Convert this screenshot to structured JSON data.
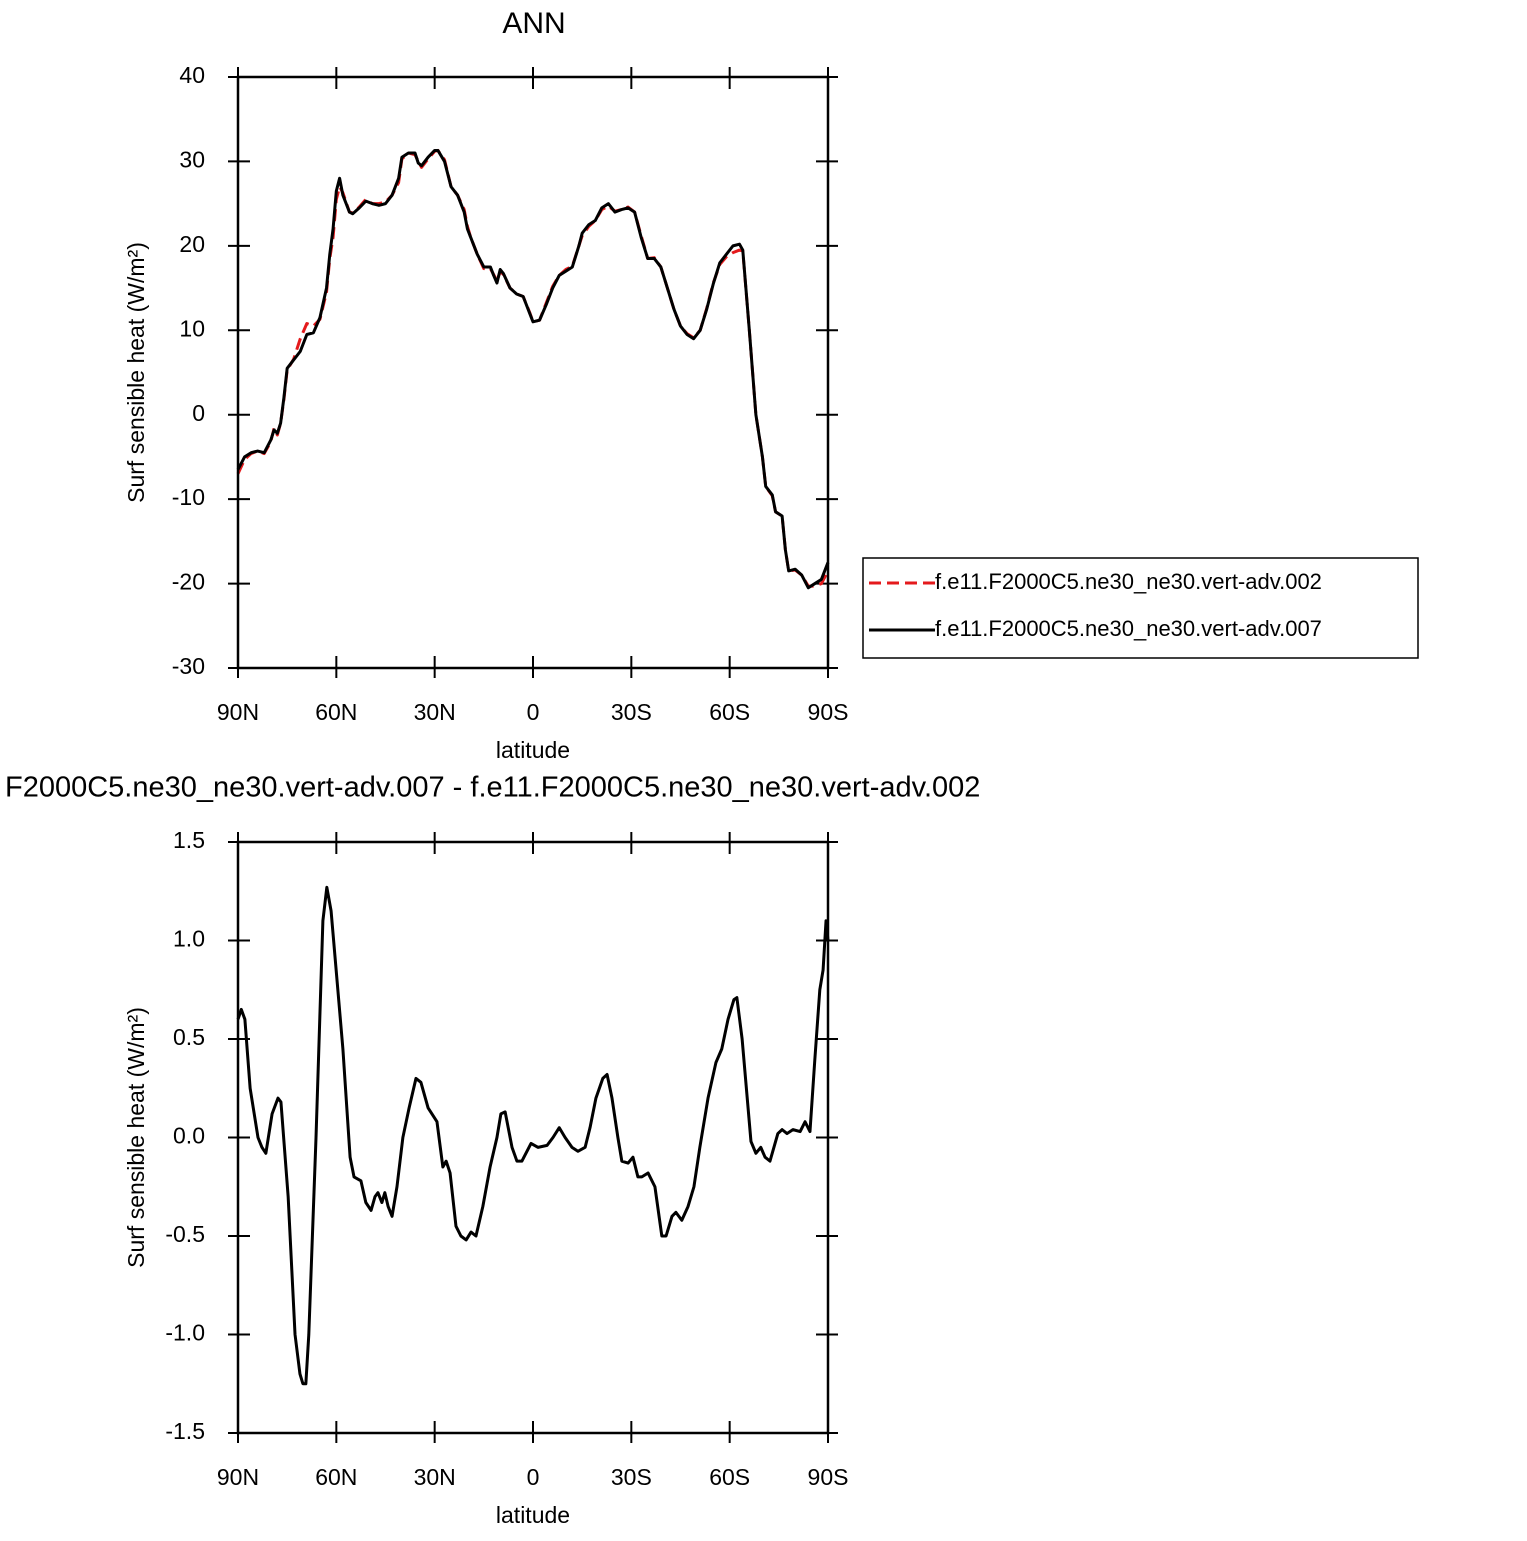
{
  "chart_data": [
    {
      "type": "line",
      "title": "ANN",
      "xlabel": "latitude",
      "ylabel": "Surf sensible heat (W/m²)",
      "xlim": [
        90,
        -90
      ],
      "xticks": [
        {
          "value": 90,
          "label": "90N"
        },
        {
          "value": 60,
          "label": "60N"
        },
        {
          "value": 30,
          "label": "30N"
        },
        0,
        {
          "value": -30,
          "label": "30S"
        },
        {
          "value": -60,
          "label": "60S"
        },
        {
          "value": -90,
          "label": "90S"
        }
      ],
      "ylim": [
        -30,
        40
      ],
      "yticks": [
        -30,
        -20,
        -10,
        0,
        10,
        20,
        30,
        40
      ],
      "legend": "right",
      "x": [
        90,
        88,
        86,
        84,
        82,
        80,
        79,
        78,
        77,
        76,
        75,
        73,
        71,
        69,
        67,
        65,
        63,
        62,
        61,
        60,
        59,
        58,
        56,
        55,
        53,
        51,
        49,
        47,
        45,
        43,
        41,
        40,
        38,
        36,
        35,
        34,
        32,
        30,
        29,
        27,
        25,
        23,
        21,
        20,
        19,
        17,
        15,
        13,
        12,
        11,
        10,
        9,
        7,
        5,
        3,
        1,
        0,
        -2,
        -4,
        -6,
        -8,
        -10,
        -12,
        -14,
        -15,
        -17,
        -19,
        -21,
        -23,
        -25,
        -27,
        -29,
        -31,
        -33,
        -35,
        -37,
        -39,
        -41,
        -43,
        -45,
        -47,
        -49,
        -51,
        -53,
        -55,
        -57,
        -59,
        -61,
        -63,
        -64,
        -66,
        -68,
        -70,
        -71,
        -73,
        -74,
        -76,
        -77,
        -78,
        -80,
        -82,
        -84,
        -86,
        -88,
        -90
      ],
      "series": [
        {
          "name": "f.e11.F2000C5.ne30_ne30.vert-adv.002",
          "color": "#e41a1c",
          "line_style": "dashed",
          "values": [
            -7,
            -5.3,
            -4.6,
            -4.3,
            -4.6,
            -3.2,
            -1.6,
            -2.4,
            -1,
            1.8,
            5.3,
            6.6,
            9,
            10.8,
            10.5,
            11.3,
            14.5,
            18.5,
            21,
            25.5,
            27,
            26.3,
            24,
            23.9,
            24.6,
            25.5,
            25,
            25,
            25.2,
            26,
            27.5,
            30.3,
            31,
            30.8,
            30,
            29.3,
            30.3,
            31.2,
            31.3,
            30.2,
            27,
            26,
            24.3,
            22.3,
            21,
            19,
            17.3,
            17.3,
            16.6,
            15.8,
            17,
            16.6,
            15,
            14.3,
            14,
            12.1,
            11,
            11.2,
            13.2,
            15.2,
            16.5,
            17.2,
            17.6,
            20,
            21.2,
            22.3,
            23,
            24.3,
            24.7,
            24.1,
            24.3,
            24.6,
            24,
            21.2,
            18.5,
            18.6,
            17.5,
            15,
            12.5,
            10.5,
            9.6,
            9.1,
            10,
            12.6,
            15.6,
            17.8,
            18.7,
            19.2,
            19.5,
            19.4,
            10,
            0,
            -5,
            -8.5,
            -9.6,
            -11.5,
            -12,
            -16,
            -18.5,
            -18.4,
            -19,
            -20.3,
            -20.3,
            -20,
            -18.5
          ]
        },
        {
          "name": "f.e11.F2000C5.ne30_ne30.vert-adv.007",
          "color": "#000000",
          "line_style": "solid",
          "values": [
            -6.5,
            -5,
            -4.5,
            -4.3,
            -4.5,
            -3,
            -1.8,
            -2.2,
            -1,
            2,
            5.5,
            6.5,
            7.5,
            9.5,
            9.7,
            11.5,
            15,
            19,
            22,
            26.5,
            28,
            26,
            24,
            23.8,
            24.5,
            25.3,
            25,
            24.8,
            25,
            26,
            28,
            30.5,
            31,
            31,
            29.8,
            29.5,
            30.5,
            31.3,
            31.3,
            30,
            27,
            26,
            24,
            22,
            21,
            19,
            17.5,
            17.5,
            16.5,
            15.6,
            17.2,
            16.7,
            15,
            14.3,
            14,
            12,
            11,
            11.2,
            13,
            15,
            16.5,
            17,
            17.5,
            20,
            21.5,
            22.5,
            23,
            24.5,
            25,
            24,
            24.3,
            24.5,
            24,
            21,
            18.5,
            18.5,
            17.5,
            15,
            12.5,
            10.5,
            9.5,
            9,
            10,
            12.5,
            15.5,
            18,
            19,
            20,
            20.2,
            19.5,
            10,
            0,
            -5,
            -8.5,
            -9.5,
            -11.5,
            -12,
            -16,
            -18.5,
            -18.3,
            -19,
            -20.5,
            -20,
            -19.5,
            -17.5
          ]
        }
      ]
    },
    {
      "type": "line",
      "title": "F2000C5.ne30_ne30.vert-adv.007 - f.e11.F2000C5.ne30_ne30.vert-adv.002",
      "xlabel": "latitude",
      "ylabel": "Surf sensible heat (W/m²)",
      "xlim": [
        90,
        -90
      ],
      "xticks": [
        {
          "value": 90,
          "label": "90N"
        },
        {
          "value": 60,
          "label": "60N"
        },
        {
          "value": 30,
          "label": "30N"
        },
        0,
        {
          "value": -30,
          "label": "30S"
        },
        {
          "value": -60,
          "label": "60S"
        },
        {
          "value": -90,
          "label": "90S"
        }
      ],
      "ylim": [
        -1.5,
        1.5
      ],
      "yticks": [
        -1.5,
        {
          "value": -1,
          "label": "-1.0"
        },
        -0.5,
        {
          "value": 0,
          "label": "0.0"
        },
        0.5,
        {
          "value": 1,
          "label": "1.0"
        },
        1.5
      ],
      "x": [
        90,
        89,
        87.9,
        86.3,
        83.9,
        82.7,
        81.5,
        79.6,
        77.8,
        76.9,
        74.7,
        72.6,
        71.1,
        70.2,
        69.3,
        68.4,
        66.2,
        64.1,
        62.9,
        61.6,
        59.8,
        58,
        55.8,
        54.6,
        52.5,
        51,
        49.4,
        48.2,
        47.3,
        46.1,
        45.2,
        44.2,
        43,
        41.5,
        39.7,
        37.8,
        35.7,
        34.2,
        32,
        29.3,
        27.5,
        26.5,
        25.3,
        23.5,
        22,
        20.4,
        18.9,
        17.4,
        15.3,
        13.1,
        11,
        9.8,
        8.5,
        6.4,
        4.9,
        3.4,
        0.6,
        -1.5,
        -4.3,
        -6.1,
        -8,
        -9.8,
        -11.9,
        -13.7,
        -15.9,
        -17.4,
        -19.2,
        -21.3,
        -22.6,
        -24.1,
        -25.9,
        -27.1,
        -29,
        -30.5,
        -32,
        -33.2,
        -35.1,
        -37.2,
        -39.3,
        -40.6,
        -42.4,
        -43.6,
        -45.4,
        -47.3,
        -49.1,
        -50.9,
        -53.4,
        -55.8,
        -57.6,
        -59.5,
        -61.3,
        -62.2,
        -63.8,
        -66.5,
        -68,
        -69.5,
        -70.8,
        -72.3,
        -74.7,
        -76,
        -77.5,
        -79.3,
        -81.5,
        -83,
        -84.5,
        -86,
        -87.5,
        -88.5,
        -89.4,
        -90
      ],
      "series": [
        {
          "color": "#000000",
          "line_style": "solid",
          "values": [
            0.6,
            0.65,
            0.6,
            0.25,
            0,
            -0.05,
            -0.08,
            0.12,
            0.2,
            0.18,
            -0.3,
            -1.0,
            -1.2,
            -1.25,
            -1.25,
            -1.0,
            0,
            1.1,
            1.27,
            1.15,
            0.8,
            0.45,
            -0.1,
            -0.2,
            -0.22,
            -0.33,
            -0.37,
            -0.3,
            -0.28,
            -0.33,
            -0.28,
            -0.35,
            -0.4,
            -0.25,
            0,
            0.15,
            0.3,
            0.28,
            0.15,
            0.08,
            -0.15,
            -0.12,
            -0.18,
            -0.45,
            -0.5,
            -0.52,
            -0.48,
            -0.5,
            -0.35,
            -0.15,
            0,
            0.12,
            0.13,
            -0.05,
            -0.12,
            -0.12,
            -0.03,
            -0.05,
            -0.04,
            0,
            0.05,
            0,
            -0.05,
            -0.07,
            -0.05,
            0.05,
            0.2,
            0.3,
            0.32,
            0.2,
            0,
            -0.12,
            -0.13,
            -0.1,
            -0.2,
            -0.2,
            -0.18,
            -0.25,
            -0.5,
            -0.5,
            -0.4,
            -0.38,
            -0.42,
            -0.35,
            -0.25,
            -0.05,
            0.2,
            0.38,
            0.45,
            0.6,
            0.7,
            0.71,
            0.5,
            -0.02,
            -0.08,
            -0.05,
            -0.1,
            -0.12,
            0.02,
            0.04,
            0.02,
            0.04,
            0.03,
            0.08,
            0.03,
            0.4,
            0.75,
            0.85,
            1.1,
            1.0
          ]
        }
      ]
    }
  ]
}
